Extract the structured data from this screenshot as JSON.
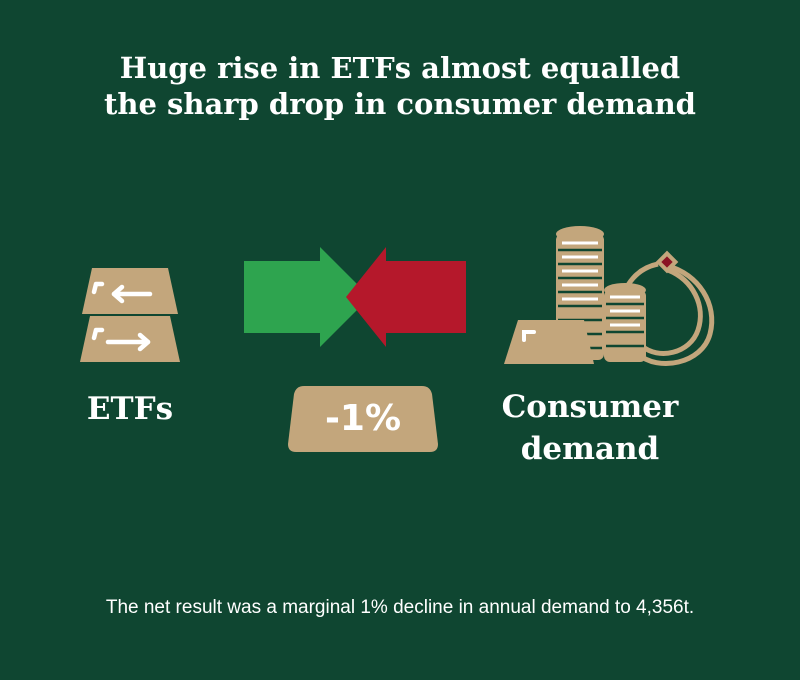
{
  "title_lines": [
    "Huge rise in ETFs almost equalled",
    "the sharp drop in consumer demand"
  ],
  "left_block": {
    "label": "ETFs",
    "icon": "gold-bars-exchange-icon"
  },
  "arrows": {
    "left_icon": "arrow-right-icon",
    "right_icon": "arrow-left-icon",
    "left_color": "#2ea44f",
    "right_color": "#b5182b"
  },
  "center_badge": {
    "text": "-1%",
    "icon": "gold-bar-badge-icon"
  },
  "right_block": {
    "label_lines": [
      "Consumer",
      "demand"
    ],
    "icon": "coins-and-jewellery-icon"
  },
  "footnote": "The net result was a marginal 1% decline in annual demand to 4,356t.",
  "colors": {
    "background": "#0f4631",
    "gold": "#c3a67c",
    "text": "#ffffff",
    "ruby": "#8a1424"
  }
}
